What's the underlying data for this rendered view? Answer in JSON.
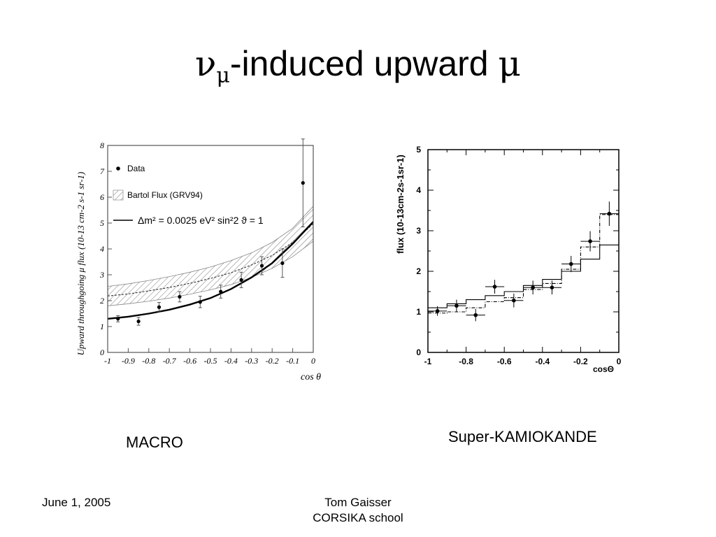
{
  "slide": {
    "title_nu": "ν",
    "title_nu_sub": "μ",
    "title_rest": "-induced upward ",
    "title_mu": "μ",
    "macro_label": "MACRO",
    "sk_label": "Super-KAMIOKANDE",
    "footer_date": "June 1, 2005",
    "footer_author": "Tom Gaisser",
    "footer_event": "CORSIKA school"
  },
  "chart_data": [
    {
      "type": "scatter",
      "xlabel": "cos θ",
      "ylabel": "Upward throughgoing μ flux (10-13 cm-2 s-1 sr-1)",
      "xlim": [
        -1,
        0
      ],
      "ylim": [
        0,
        8
      ],
      "x_ticks": [
        "-1",
        "-0.9",
        "-0.8",
        "-0.7",
        "-0.6",
        "-0.5",
        "-0.4",
        "-0.3",
        "-0.2",
        "-0.1",
        "0"
      ],
      "y_ticks": [
        "0",
        "1",
        "2",
        "3",
        "4",
        "5",
        "6",
        "7",
        "8"
      ],
      "legend": {
        "placement": "top-left",
        "data_label": "Data",
        "band_label": "Bartol Flux (GRV94)",
        "line_label": "Δm² = 0.0025 eV² sin²2 ϑ = 1"
      },
      "series": [
        {
          "name": "Data",
          "x": [
            -0.95,
            -0.85,
            -0.75,
            -0.65,
            -0.55,
            -0.45,
            -0.35,
            -0.25,
            -0.15,
            -0.05
          ],
          "y": [
            1.3,
            1.2,
            1.75,
            2.15,
            1.95,
            2.35,
            2.8,
            3.35,
            3.45,
            6.55
          ],
          "err_up": [
            0.12,
            0.15,
            0.18,
            0.2,
            0.22,
            0.25,
            0.3,
            0.35,
            0.55,
            1.7
          ],
          "err_down": [
            0.12,
            0.15,
            0.18,
            0.2,
            0.22,
            0.25,
            0.3,
            0.35,
            0.55,
            1.7
          ]
        },
        {
          "name": "Bartol Flux (GRV94)",
          "x": [
            -1,
            -0.9,
            -0.8,
            -0.7,
            -0.6,
            -0.5,
            -0.4,
            -0.3,
            -0.2,
            -0.1,
            0
          ],
          "y_low": [
            1.8,
            1.88,
            1.98,
            2.1,
            2.25,
            2.42,
            2.62,
            2.9,
            3.25,
            3.7,
            4.3
          ],
          "y_high": [
            2.55,
            2.65,
            2.78,
            2.93,
            3.1,
            3.3,
            3.55,
            3.85,
            4.25,
            4.8,
            5.65
          ],
          "y_mid": [
            2.18,
            2.26,
            2.38,
            2.51,
            2.67,
            2.86,
            3.08,
            3.38,
            3.75,
            4.25,
            4.97
          ]
        },
        {
          "name": "Δm² = 0.0025 eV² sin²2 ϑ = 1",
          "x": [
            -1,
            -0.9,
            -0.8,
            -0.7,
            -0.6,
            -0.5,
            -0.4,
            -0.3,
            -0.2,
            -0.1,
            0
          ],
          "y": [
            1.3,
            1.38,
            1.5,
            1.65,
            1.85,
            2.1,
            2.45,
            2.9,
            3.45,
            4.2,
            5.05
          ]
        }
      ]
    },
    {
      "type": "line",
      "xlabel": "cosΘ",
      "ylabel": "flux (10-13cm-2s-1sr-1)",
      "xlim": [
        -1,
        0
      ],
      "ylim": [
        0,
        5
      ],
      "x_ticks": [
        "-1",
        "-0.8",
        "-0.6",
        "-0.4",
        "-0.2",
        "0"
      ],
      "y_ticks": [
        "0",
        "1",
        "2",
        "3",
        "4",
        "5"
      ],
      "bin_edges": [
        -1,
        -0.9,
        -0.8,
        -0.7,
        -0.6,
        -0.5,
        -0.4,
        -0.3,
        -0.2,
        -0.1,
        0
      ],
      "series": [
        {
          "name": "data",
          "x": [
            -0.95,
            -0.85,
            -0.75,
            -0.65,
            -0.55,
            -0.45,
            -0.35,
            -0.25,
            -0.15,
            -0.05
          ],
          "y": [
            1.02,
            1.15,
            0.92,
            1.62,
            1.28,
            1.6,
            1.6,
            2.18,
            2.74,
            3.42
          ],
          "err": [
            0.12,
            0.15,
            0.15,
            0.17,
            0.17,
            0.17,
            0.17,
            0.2,
            0.25,
            0.3
          ]
        },
        {
          "name": "solid",
          "y": [
            1.1,
            1.2,
            1.3,
            1.4,
            1.5,
            1.65,
            1.8,
            2.0,
            2.3,
            2.65
          ]
        },
        {
          "name": "dashed",
          "y": [
            0.97,
            1.0,
            1.1,
            1.25,
            1.35,
            1.55,
            1.7,
            2.05,
            2.6,
            3.4
          ]
        }
      ]
    }
  ]
}
